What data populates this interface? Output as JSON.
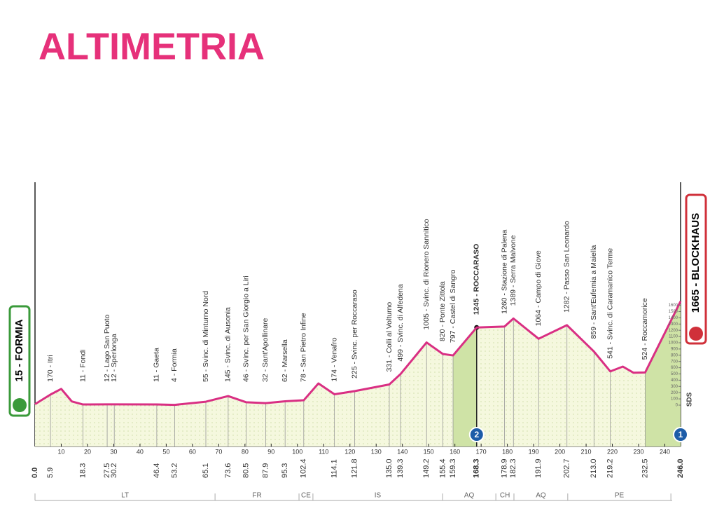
{
  "chart_data": {
    "type": "area",
    "title": "ALTIMETRIA",
    "x": [
      0,
      5.9,
      10,
      14,
      18.3,
      27.5,
      30.2,
      46.4,
      53.2,
      65.1,
      73.6,
      80.5,
      87.9,
      95.3,
      102.4,
      108,
      114.1,
      121.8,
      135.0,
      139.3,
      149.2,
      155.4,
      159.3,
      168.3,
      172,
      178.9,
      182.3,
      191.9,
      202.7,
      213.0,
      219.2,
      224,
      228,
      232.5,
      246.0
    ],
    "values": [
      15,
      170,
      260,
      60,
      11,
      12,
      12,
      11,
      4,
      55,
      145,
      46,
      32,
      62,
      78,
      348,
      174,
      225,
      331,
      499,
      1005,
      820,
      797,
      1245,
      1250,
      1260,
      1389,
      1064,
      1282,
      859,
      541,
      618,
      520,
      524,
      1665
    ],
    "point_labels": [
      "15 - FORMIA",
      "170 - Itri",
      null,
      null,
      "11 - Fondi",
      "12 - Lago San Puoto",
      "12 - Sperlonga",
      "11 - Gaeta",
      "4 - Formia",
      "55 - Svinc. di Minturno Nord",
      "145 - Svinc. di Ausonia",
      "46 - Svinc. per San Giorgio a Liri",
      "32 - Sant'Apollinare",
      "62 - Marsella",
      "78 - San Pietro Infine",
      null,
      "174 - Venafro",
      "225 - Svinc. per Roccaraso",
      "331 - Colli al Volturno",
      "499 - Svinc. di Alfedena",
      "1005 - Svinc. di Rionero Sannitico",
      "820 - Ponte Zittola",
      "797 - Castel di Sangro",
      "1245 - ROCCARASO",
      null,
      "1260 - Stazione di Palena",
      "1389 - Serra Malvone",
      "1064 - Campo di Giove",
      "1282 - Passo San Leonardo",
      "859 - Sant'Eufemia a Maiella",
      "541 - Svinc. di Caramanico Terme",
      null,
      null,
      "524 - Roccamorice",
      "1665 - BLOCKHAUS"
    ],
    "x_labels": [
      "0.0",
      "5.9",
      null,
      null,
      "18.3",
      "27.5",
      "30.2",
      "46.4",
      "53.2",
      "65.1",
      "73.6",
      "80.5",
      "87.9",
      "95.3",
      "102.4",
      null,
      "114.1",
      "121.8",
      "135.0",
      "139.3",
      "149.2",
      "155.4",
      "159.3",
      "168.3",
      null,
      "178.9",
      "182.3",
      "191.9",
      "202.7",
      "213.0",
      "219.2",
      null,
      null,
      "232.5",
      "246.0"
    ],
    "climb_marks": [
      null,
      null,
      null,
      null,
      null,
      null,
      null,
      null,
      null,
      null,
      null,
      null,
      null,
      null,
      null,
      null,
      null,
      null,
      null,
      null,
      null,
      null,
      null,
      "2",
      null,
      null,
      null,
      null,
      null,
      null,
      null,
      null,
      null,
      null,
      "1"
    ],
    "xlim": [
      0,
      246
    ],
    "xticks": [
      10,
      20,
      30,
      40,
      50,
      60,
      70,
      80,
      90,
      100,
      110,
      120,
      130,
      140,
      150,
      160,
      170,
      180,
      190,
      200,
      210,
      220,
      230,
      240
    ],
    "ylim": [
      -663,
      3573
    ],
    "yticks": [
      0,
      100,
      200,
      300,
      400,
      500,
      600,
      700,
      800,
      900,
      1000,
      1100,
      1200,
      1300,
      1400,
      1500,
      1600
    ],
    "regions": [
      {
        "name": "LT",
        "end": 68.6
      },
      {
        "name": "FR",
        "end": 100.6
      },
      {
        "name": "CE",
        "end": 105.9
      },
      {
        "name": "IS",
        "end": 155.3
      },
      {
        "name": "AQ",
        "end": 175.6
      },
      {
        "name": "CH",
        "end": 182.5
      },
      {
        "name": "AQ",
        "end": 203.0
      },
      {
        "name": "PE",
        "end": 242.3
      }
    ],
    "scale_label": "SDS",
    "line_color": "#d92f83",
    "fill_color": "#f5f8de",
    "climb_fill_color": "#cfe3a6",
    "title_color": "#e6317a"
  }
}
